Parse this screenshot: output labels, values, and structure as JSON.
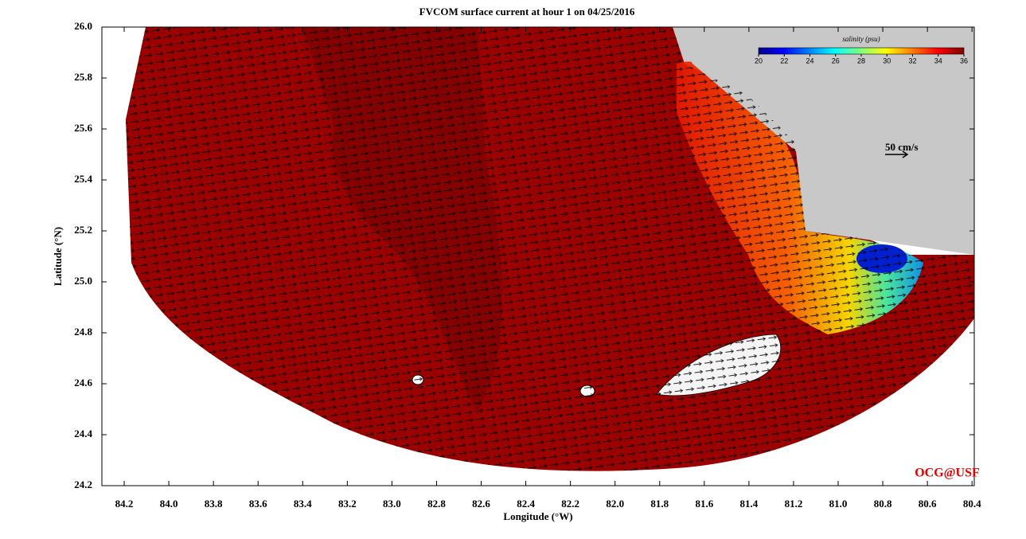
{
  "chart_data": {
    "type": "map",
    "title": "FVCOM surface current at hour 1 on 04/25/2016",
    "x_label": "Longitude (°W)",
    "y_label": "Latitude (°N)",
    "xlim": [
      84.3,
      80.39
    ],
    "ylim": [
      24.2,
      26.0
    ],
    "xticks": [
      84.2,
      {
        "value": 84.0,
        "label": "84.0"
      },
      83.8,
      83.6,
      83.4,
      83.2,
      {
        "value": 83.0,
        "label": "83.0"
      },
      82.8,
      82.6,
      82.4,
      82.2,
      {
        "value": 82.0,
        "label": "82.0"
      },
      81.8,
      81.6,
      81.4,
      81.2,
      {
        "value": 81.0,
        "label": "81.0"
      },
      80.8,
      80.6,
      80.4
    ],
    "yticks": [
      24.2,
      24.4,
      24.6,
      24.8,
      {
        "value": 25.0,
        "label": "25.0"
      },
      25.2,
      25.4,
      25.6,
      25.8,
      {
        "value": 26.0,
        "label": "26.0"
      }
    ],
    "colorbar": {
      "title": "salinity (psu)",
      "lim": [
        20,
        36
      ],
      "ticks": [
        20,
        22,
        24,
        26,
        28,
        30,
        32,
        34,
        36
      ]
    },
    "scale_label": "50 cm/s",
    "credit": "OCG@USF"
  }
}
